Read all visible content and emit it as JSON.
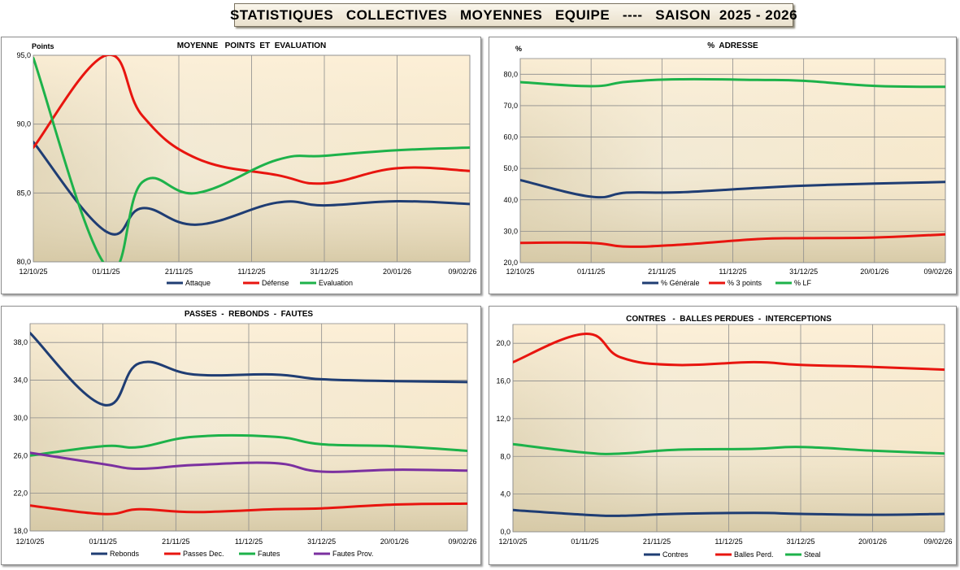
{
  "page_title": "STATISTIQUES   COLLECTIVES   MOYENNES   EQUIPE   ----   SAISON  2025 - 2026",
  "chart_data": [
    {
      "type": "line",
      "title": "MOYENNE   POINTS  ET  EVALUATION",
      "ylabel": "Points",
      "ylim": [
        80,
        95
      ],
      "yticks": [
        80,
        85,
        90,
        95
      ],
      "ytick_labels": [
        "80,0",
        "85,0",
        "90,0",
        "95,0"
      ],
      "x_tick_labels": [
        "12/10/25",
        "01/11/25",
        "21/11/25",
        "11/12/25",
        "31/12/25",
        "20/01/26",
        "09/02/26"
      ],
      "x_days": [
        0,
        20,
        40,
        60,
        80,
        100,
        120
      ],
      "x_range": [
        0,
        120
      ],
      "grid": true,
      "legend": "bottom",
      "series": [
        {
          "name": "Attaque",
          "color": "#1f3d73",
          "x": [
            0,
            20,
            30,
            45,
            67,
            80,
            100,
            121
          ],
          "values": [
            88.7,
            82.2,
            83.9,
            82.7,
            84.3,
            84.1,
            84.4,
            84.2
          ]
        },
        {
          "name": "Défense",
          "color": "#e8150f",
          "x": [
            0,
            20,
            30,
            45,
            67,
            80,
            100,
            121
          ],
          "values": [
            88.3,
            95.0,
            90.6,
            87.5,
            86.3,
            85.7,
            86.8,
            86.6
          ]
        },
        {
          "name": "Evaluation",
          "color": "#1db24a",
          "x": [
            0,
            20,
            30,
            45,
            67,
            80,
            100,
            121
          ],
          "values": [
            94.8,
            79.7,
            85.8,
            85.0,
            87.4,
            87.7,
            88.1,
            88.3
          ]
        }
      ]
    },
    {
      "type": "line",
      "title": "%  ADRESSE",
      "ylabel": "%",
      "ylim": [
        20,
        85
      ],
      "yticks": [
        20,
        30,
        40,
        50,
        60,
        70,
        80
      ],
      "ytick_labels": [
        "20,0",
        "30,0",
        "40,0",
        "50,0",
        "60,0",
        "70,0",
        "80,0"
      ],
      "x_tick_labels": [
        "12/10/25",
        "01/11/25",
        "21/11/25",
        "11/12/25",
        "31/12/25",
        "20/01/26",
        "09/02/26"
      ],
      "x_days": [
        0,
        20,
        40,
        60,
        80,
        100,
        120
      ],
      "x_range": [
        0,
        120
      ],
      "grid": true,
      "legend": "bottom",
      "series": [
        {
          "name": "% Générale",
          "color": "#1f3d73",
          "x": [
            0,
            20,
            30,
            45,
            67,
            80,
            100,
            121
          ],
          "values": [
            46.3,
            41.0,
            42.3,
            42.4,
            43.8,
            44.5,
            45.2,
            45.7
          ]
        },
        {
          "name": "% 3 points",
          "color": "#e8150f",
          "x": [
            0,
            20,
            30,
            45,
            67,
            80,
            100,
            121
          ],
          "values": [
            26.3,
            26.3,
            25.1,
            25.7,
            27.5,
            27.8,
            28.0,
            29.0
          ]
        },
        {
          "name": "% LF",
          "color": "#1db24a",
          "x": [
            0,
            20,
            30,
            45,
            67,
            80,
            100,
            121
          ],
          "values": [
            77.5,
            76.2,
            77.6,
            78.4,
            78.2,
            77.9,
            76.3,
            76.0
          ]
        }
      ]
    },
    {
      "type": "line",
      "title": "PASSES  -  REBONDS  -  FAUTES",
      "ylabel": "",
      "ylim": [
        18,
        40
      ],
      "yticks": [
        18,
        22,
        26,
        30,
        34,
        38
      ],
      "ytick_labels": [
        "18,0",
        "22,0",
        "26,0",
        "30,0",
        "34,0",
        "38,0"
      ],
      "x_tick_labels": [
        "12/10/25",
        "01/11/25",
        "21/11/25",
        "11/12/25",
        "31/12/25",
        "20/01/26",
        "09/02/26"
      ],
      "x_days": [
        0,
        20,
        40,
        60,
        80,
        100,
        120
      ],
      "x_range": [
        0,
        120
      ],
      "grid": true,
      "legend": "bottom",
      "series": [
        {
          "name": "Rebonds",
          "color": "#1f3d73",
          "x": [
            0,
            20,
            30,
            45,
            67,
            80,
            100,
            121
          ],
          "values": [
            39.0,
            31.4,
            35.8,
            34.6,
            34.6,
            34.1,
            33.9,
            33.8
          ]
        },
        {
          "name": "Passes Dec.",
          "color": "#e8150f",
          "x": [
            0,
            20,
            30,
            45,
            67,
            80,
            100,
            121
          ],
          "values": [
            20.7,
            19.8,
            20.3,
            20.0,
            20.3,
            20.4,
            20.8,
            20.9
          ]
        },
        {
          "name": "Fautes",
          "color": "#1db24a",
          "x": [
            0,
            20,
            30,
            45,
            67,
            80,
            100,
            121
          ],
          "values": [
            26.0,
            27.0,
            26.9,
            28.0,
            28.0,
            27.2,
            27.0,
            26.5
          ]
        },
        {
          "name": "Fautes Prov.",
          "color": "#7b30a0",
          "x": [
            0,
            20,
            30,
            45,
            67,
            80,
            100,
            121
          ],
          "values": [
            26.3,
            25.1,
            24.6,
            25.0,
            25.2,
            24.3,
            24.5,
            24.4
          ]
        }
      ]
    },
    {
      "type": "line",
      "title": "CONTRES   -  BALLES PERDUES  -  INTERCEPTIONS",
      "ylabel": "",
      "ylim": [
        0,
        22
      ],
      "yticks": [
        0,
        4,
        8,
        12,
        16,
        20
      ],
      "ytick_labels": [
        "0,0",
        "4,0",
        "8,0",
        "12,0",
        "16,0",
        "20,0"
      ],
      "x_tick_labels": [
        "12/10/25",
        "01/11/25",
        "21/11/25",
        "11/12/25",
        "31/12/25",
        "20/01/26",
        "09/02/26"
      ],
      "x_days": [
        0,
        20,
        40,
        60,
        80,
        100,
        120
      ],
      "x_range": [
        0,
        120
      ],
      "grid": true,
      "legend": "bottom",
      "series": [
        {
          "name": "Contres",
          "color": "#1f3d73",
          "x": [
            0,
            20,
            30,
            45,
            67,
            80,
            100,
            121
          ],
          "values": [
            2.3,
            1.8,
            1.7,
            1.9,
            2.0,
            1.9,
            1.8,
            1.9
          ]
        },
        {
          "name": "Balles Perd.",
          "color": "#e8150f",
          "x": [
            0,
            20,
            30,
            45,
            67,
            80,
            100,
            121
          ],
          "values": [
            18.0,
            21.0,
            18.5,
            17.7,
            18.0,
            17.7,
            17.5,
            17.2
          ]
        },
        {
          "name": "Steal",
          "color": "#1db24a",
          "x": [
            0,
            20,
            30,
            45,
            67,
            80,
            100,
            121
          ],
          "values": [
            9.3,
            8.4,
            8.3,
            8.7,
            8.8,
            9.0,
            8.6,
            8.3
          ]
        }
      ]
    }
  ]
}
